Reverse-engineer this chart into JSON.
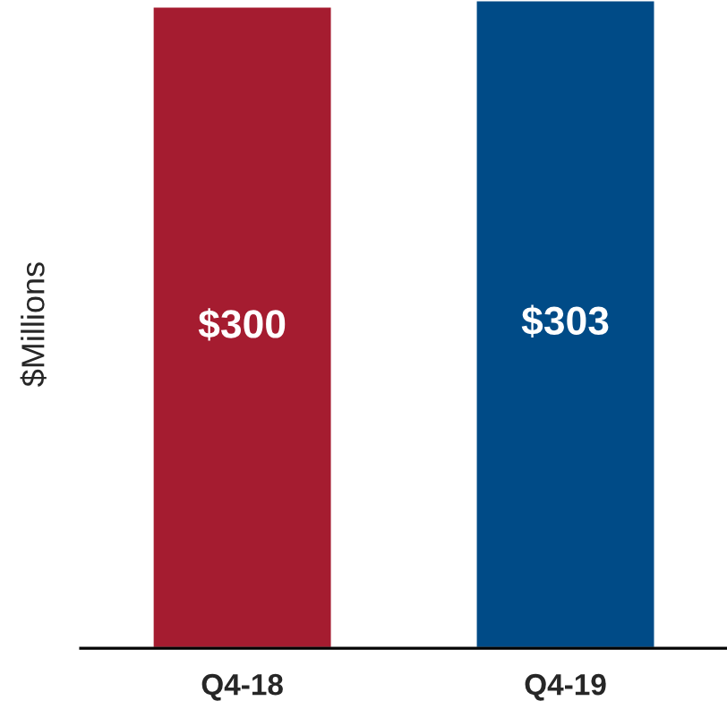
{
  "chart_data": {
    "type": "bar",
    "ylabel": "$Millions",
    "categories": [
      "Q4-18",
      "Q4-19"
    ],
    "values": [
      300,
      303
    ],
    "colors": [
      "#a51c30",
      "#004b87"
    ],
    "value_labels": [
      "$300",
      "$303"
    ],
    "ylim": [
      0,
      303
    ],
    "tick_labels": "x",
    "grid": false
  }
}
